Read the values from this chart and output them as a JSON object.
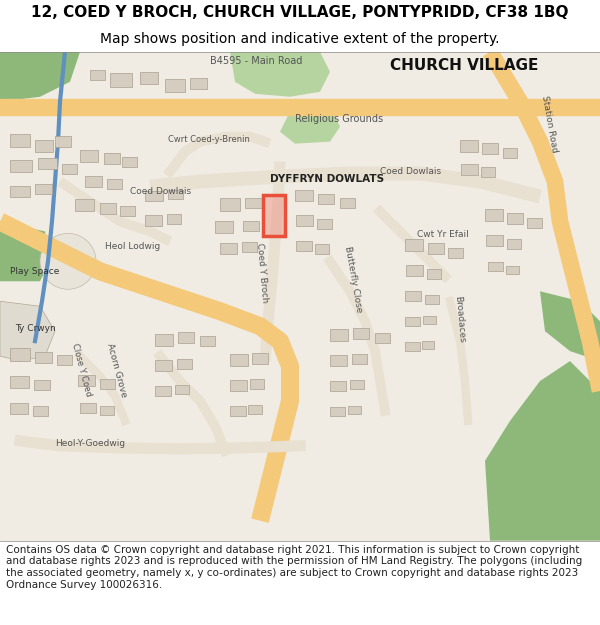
{
  "title_line1": "12, COED Y BROCH, CHURCH VILLAGE, PONTYPRIDD, CF38 1BQ",
  "title_line2": "Map shows position and indicative extent of the property.",
  "copyright_text": "Contains OS data © Crown copyright and database right 2021. This information is subject to Crown copyright and database rights 2023 and is reproduced with the permission of HM Land Registry. The polygons (including the associated geometry, namely x, y co-ordinates) are subject to Crown copyright and database rights 2023 Ordnance Survey 100026316.",
  "title_fontsize": 11,
  "subtitle_fontsize": 10,
  "copyright_fontsize": 7.5,
  "bg_color": "#ffffff",
  "map_bg": "#f0ece4",
  "road_color_main": "#f5c97a",
  "road_color_secondary": "#e8e0d0",
  "green_fill": "#8db87a",
  "green_light": "#b5d4a0",
  "highlight_color": "#e8503a",
  "blue_line": "#6090c0",
  "building_fill": "#d4cdc0",
  "building_edge": "#a8a090"
}
